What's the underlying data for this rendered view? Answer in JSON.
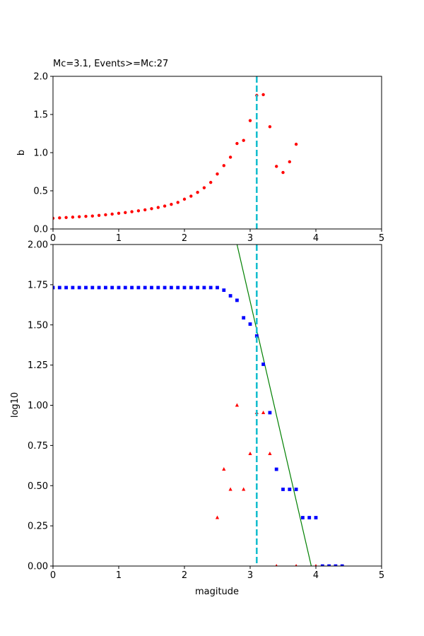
{
  "chart_data": [
    {
      "type": "scatter",
      "title": "Mc=3.1, Events>=Mc:27",
      "xlabel": "",
      "ylabel": "b",
      "xlim": [
        0,
        5
      ],
      "ylim": [
        0,
        2.0
      ],
      "xticks": [
        "0",
        "1",
        "2",
        "3",
        "4",
        "5"
      ],
      "yticks": [
        "0.0",
        "0.5",
        "1.0",
        "1.5",
        "2.0"
      ],
      "series": [
        {
          "marker": "circle",
          "color": "#ff0000",
          "x": [
            0.0,
            0.1,
            0.2,
            0.3,
            0.4,
            0.5,
            0.6,
            0.7,
            0.8,
            0.9,
            1.0,
            1.1,
            1.2,
            1.3,
            1.4,
            1.5,
            1.6,
            1.7,
            1.8,
            1.9,
            2.0,
            2.1,
            2.2,
            2.3,
            2.4,
            2.5,
            2.6,
            2.7,
            2.8,
            2.9,
            3.0,
            3.1,
            3.2,
            3.3,
            3.4,
            3.5,
            3.6,
            3.7
          ],
          "y": [
            0.14,
            0.145,
            0.15,
            0.155,
            0.16,
            0.165,
            0.17,
            0.178,
            0.186,
            0.195,
            0.205,
            0.215,
            0.226,
            0.238,
            0.251,
            0.266,
            0.282,
            0.3,
            0.322,
            0.348,
            0.39,
            0.43,
            0.48,
            0.54,
            0.61,
            0.72,
            0.83,
            0.94,
            1.12,
            1.16,
            1.42,
            1.75,
            1.76,
            1.34,
            0.82,
            0.74,
            0.88,
            1.11
          ]
        }
      ],
      "vline": {
        "x": 3.1,
        "color": "#17becf",
        "style": "dashed"
      },
      "grid": false
    },
    {
      "type": "scatter",
      "title": "",
      "xlabel": "magitude",
      "ylabel": "log10",
      "xlim": [
        0,
        5
      ],
      "ylim": [
        0,
        2.0
      ],
      "xticks": [
        "0",
        "1",
        "2",
        "3",
        "4",
        "5"
      ],
      "yticks": [
        "0.00",
        "0.25",
        "0.50",
        "0.75",
        "1.00",
        "1.25",
        "1.50",
        "1.75",
        "2.00"
      ],
      "series": [
        {
          "marker": "square",
          "color": "#0000ff",
          "x": [
            0.0,
            0.1,
            0.2,
            0.3,
            0.4,
            0.5,
            0.6,
            0.7,
            0.8,
            0.9,
            1.0,
            1.1,
            1.2,
            1.3,
            1.4,
            1.5,
            1.6,
            1.7,
            1.8,
            1.9,
            2.0,
            2.1,
            2.2,
            2.3,
            2.4,
            2.5,
            2.6,
            2.7,
            2.8,
            2.9,
            3.0,
            3.1,
            3.2,
            3.3,
            3.4,
            3.5,
            3.6,
            3.7,
            3.8,
            3.9,
            4.0,
            4.1,
            4.2,
            4.3,
            4.4
          ],
          "y": [
            1.732,
            1.732,
            1.732,
            1.732,
            1.732,
            1.732,
            1.732,
            1.732,
            1.732,
            1.732,
            1.732,
            1.732,
            1.732,
            1.732,
            1.732,
            1.732,
            1.732,
            1.732,
            1.732,
            1.732,
            1.732,
            1.732,
            1.732,
            1.732,
            1.732,
            1.732,
            1.716,
            1.681,
            1.653,
            1.544,
            1.505,
            1.431,
            1.255,
            0.954,
            0.602,
            0.477,
            0.477,
            0.477,
            0.301,
            0.301,
            0.301,
            0.0,
            0.0,
            0.0,
            0.0
          ]
        },
        {
          "marker": "triangle",
          "color": "#ff0000",
          "x": [
            2.5,
            2.6,
            2.7,
            2.8,
            2.9,
            3.0,
            3.1,
            3.2,
            3.3,
            3.4,
            3.7,
            4.0
          ],
          "y": [
            0.301,
            0.602,
            0.477,
            1.0,
            0.477,
            0.699,
            0.954,
            0.954,
            0.699,
            0.0,
            0.0,
            0.0
          ]
        }
      ],
      "fit_line": {
        "color": "#008000",
        "x": [
          2.8,
          3.93
        ],
        "y": [
          2.0,
          0.0
        ]
      },
      "vline": {
        "x": 3.1,
        "color": "#17becf",
        "style": "dashed"
      },
      "grid": false
    }
  ]
}
